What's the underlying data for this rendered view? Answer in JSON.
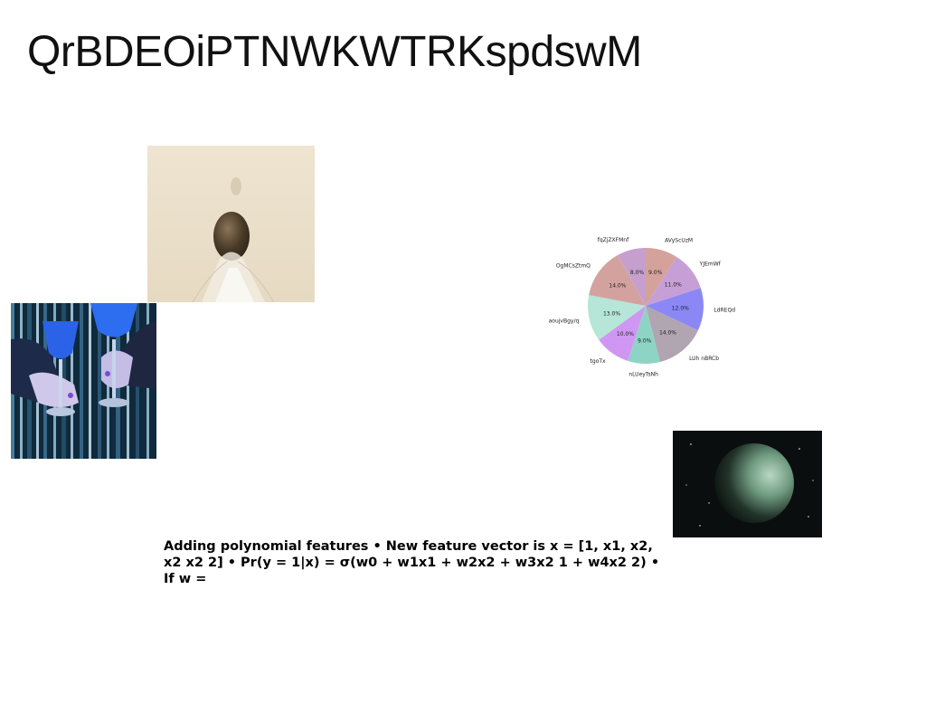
{
  "page": {
    "title": "QrBDEOiPTNWKWTRKspdswM",
    "body_text": "Adding polynomial features • New feature vector is x = [1, x1, x2, x2 x2 2] • Pr(y = 1|x) = σ(w0 + w1x1 + w2x2 + w3x2 1 + w4x2 2) • If w ="
  },
  "chart_data": {
    "type": "pie",
    "labels": [
      "AVyScUzM",
      "YJEmWf",
      "LdREQd",
      "LUh nBRCb",
      "nLUeyTsNh",
      "tgoTx",
      "aoujvBgy/q",
      "OgMCsZtmQ",
      "fqZjZXFMnf"
    ],
    "values": [
      9.0,
      11.0,
      12.0,
      14.0,
      9.0,
      10.0,
      13.0,
      14.0,
      8.0
    ],
    "value_labels": [
      "9.0%",
      "11.0%",
      "12.0%",
      "14.0%",
      "9.0%",
      "10.0%",
      "13.0%",
      "14.0%",
      "8.0%"
    ],
    "colors": [
      "#d4a29a",
      "#c69fd6",
      "#8b88f5",
      "#b0a5b1",
      "#8ed4c4",
      "#cf97f2",
      "#b5e6d8",
      "#d4a29e",
      "#c69fce"
    ],
    "start_angle": 90,
    "direction": "clockwise"
  }
}
